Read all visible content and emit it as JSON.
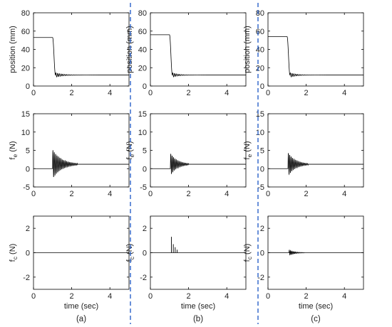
{
  "style": {
    "line_color": "#000000",
    "separator_color": "#2a62c9",
    "text_color": "#222222"
  },
  "columns": [
    {
      "caption": "(a)"
    },
    {
      "caption": "(b)"
    },
    {
      "caption": "(c)"
    }
  ],
  "chart_data": [
    {
      "row": 0,
      "col": 0,
      "type": "line",
      "ylabel": "position (mm)",
      "xlabel": "",
      "xlim": [
        0,
        5
      ],
      "ylim": [
        0,
        80
      ],
      "xticks": [
        0,
        2,
        4
      ],
      "yticks": [
        0,
        20,
        40,
        60,
        80
      ],
      "series": [
        {
          "kind": "step-response",
          "initial": 53,
          "final": 12,
          "t_switch": 1.0,
          "t_settle_end": 1.15,
          "ripple_amp": 2.5,
          "ripple_freq": 11,
          "ripple_decay": 2.4
        }
      ]
    },
    {
      "row": 0,
      "col": 1,
      "type": "line",
      "ylabel": "position (mm)",
      "xlabel": "",
      "xlim": [
        0,
        5
      ],
      "ylim": [
        0,
        80
      ],
      "xticks": [
        0,
        2,
        4
      ],
      "yticks": [
        0,
        20,
        40,
        60,
        80
      ],
      "series": [
        {
          "kind": "step-response",
          "initial": 56,
          "final": 12,
          "t_switch": 1.0,
          "t_settle_end": 1.15,
          "ripple_amp": 2.5,
          "ripple_freq": 11,
          "ripple_decay": 3.0
        }
      ]
    },
    {
      "row": 0,
      "col": 2,
      "type": "line",
      "ylabel": "position (mm)",
      "xlabel": "",
      "xlim": [
        0,
        5
      ],
      "ylim": [
        0,
        80
      ],
      "xticks": [
        0,
        2,
        4
      ],
      "yticks": [
        0,
        20,
        40,
        60,
        80
      ],
      "series": [
        {
          "kind": "step-response",
          "initial": 54,
          "final": 12,
          "t_switch": 1.0,
          "t_settle_end": 1.15,
          "ripple_amp": 2.5,
          "ripple_freq": 11,
          "ripple_decay": 2.8
        }
      ]
    },
    {
      "row": 1,
      "col": 0,
      "type": "line",
      "ylabel": "f_e (N)",
      "xlabel": "",
      "xlim": [
        0,
        5
      ],
      "ylim": [
        -5,
        15
      ],
      "xticks": [
        0,
        2,
        4
      ],
      "yticks": [
        -5,
        0,
        5,
        10,
        15
      ],
      "series": [
        {
          "kind": "decaying-oscillation",
          "baseline_before": 0,
          "baseline_after": 1.2,
          "t_start": 1.0,
          "t_end": 2.3,
          "amplitude": 4.0,
          "freq": 14,
          "decay": 2.2
        }
      ]
    },
    {
      "row": 1,
      "col": 1,
      "type": "line",
      "ylabel": "f_e (N)",
      "xlabel": "",
      "xlim": [
        0,
        5
      ],
      "ylim": [
        -5,
        15
      ],
      "xticks": [
        0,
        2,
        4
      ],
      "yticks": [
        -5,
        0,
        5,
        10,
        15
      ],
      "series": [
        {
          "kind": "decaying-oscillation",
          "baseline_before": 0,
          "baseline_after": 1.2,
          "t_start": 1.05,
          "t_end": 2.0,
          "amplitude": 3.0,
          "freq": 14,
          "decay": 2.8
        }
      ]
    },
    {
      "row": 1,
      "col": 2,
      "type": "line",
      "ylabel": "f_e (N)",
      "xlabel": "",
      "xlim": [
        0,
        5
      ],
      "ylim": [
        -5,
        15
      ],
      "xticks": [
        0,
        2,
        4
      ],
      "yticks": [
        -5,
        0,
        5,
        10,
        15
      ],
      "series": [
        {
          "kind": "decaying-oscillation",
          "baseline_before": 0,
          "baseline_after": 1.2,
          "t_start": 1.05,
          "t_end": 2.1,
          "amplitude": 3.2,
          "freq": 14,
          "decay": 2.6
        }
      ]
    },
    {
      "row": 2,
      "col": 0,
      "type": "line",
      "ylabel": "f_c (N)",
      "xlabel": "time (sec)",
      "xlim": [
        0,
        5
      ],
      "ylim": [
        -3,
        3
      ],
      "xticks": [
        0,
        2,
        4
      ],
      "yticks": [
        -2,
        0,
        2
      ],
      "series": [
        {
          "kind": "flat",
          "value": 0
        }
      ]
    },
    {
      "row": 2,
      "col": 1,
      "type": "line",
      "ylabel": "f_c (N)",
      "xlabel": "time (sec)",
      "xlim": [
        0,
        5
      ],
      "ylim": [
        -3,
        3
      ],
      "xticks": [
        0,
        2,
        4
      ],
      "yticks": [
        -2,
        0,
        2
      ],
      "series": [
        {
          "kind": "impulses",
          "baseline": 0,
          "spikes": [
            [
              1.1,
              1.3
            ],
            [
              1.2,
              0.7
            ],
            [
              1.3,
              0.45
            ],
            [
              1.4,
              0.25
            ]
          ]
        }
      ]
    },
    {
      "row": 2,
      "col": 2,
      "type": "line",
      "ylabel": "f_c (N)",
      "xlabel": "time (sec)",
      "xlim": [
        0,
        5
      ],
      "ylim": [
        -3,
        3
      ],
      "xticks": [
        0,
        2,
        4
      ],
      "yticks": [
        -2,
        0,
        2
      ],
      "series": [
        {
          "kind": "decaying-oscillation",
          "baseline_before": 0,
          "baseline_after": 0,
          "t_start": 1.1,
          "t_end": 1.9,
          "amplitude": 0.22,
          "freq": 16,
          "decay": 3.5
        }
      ]
    }
  ]
}
